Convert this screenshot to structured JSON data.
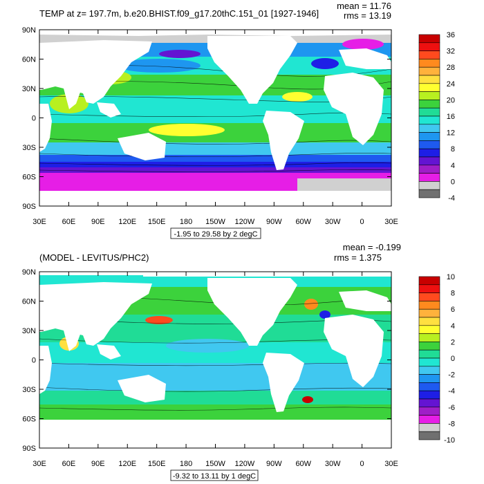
{
  "panels": [
    {
      "id": "top",
      "title": "TEMP at z= 197.7m, b.e20.BHIST.f09_g17.20thC.151_01 [1927-1946]",
      "mean": "mean = 11.76",
      "rms": "rms = 13.19",
      "range_label": "-1.95 to 29.58 by 2 degC",
      "lat_labels": [
        "90N",
        "60N",
        "30N",
        "0",
        "30S",
        "60S",
        "90S"
      ],
      "lon_labels": [
        "30E",
        "60E",
        "90E",
        "120E",
        "150E",
        "180",
        "150W",
        "120W",
        "90W",
        "60W",
        "30W",
        "0",
        "30E"
      ],
      "colorbar": {
        "labels": [
          "36",
          "32",
          "28",
          "24",
          "20",
          "16",
          "12",
          "8",
          "4",
          "0",
          "-4"
        ],
        "colors": [
          "#c80000",
          "#ee1010",
          "#ff4a1e",
          "#ff8a1e",
          "#ffb23c",
          "#ffe040",
          "#ffff30",
          "#b8f020",
          "#3cd23c",
          "#20dc96",
          "#20e6d2",
          "#40c8f0",
          "#1e96f0",
          "#1e5af0",
          "#1e1ee6",
          "#6414d2",
          "#a01ec8",
          "#e61ee6",
          "#d0d0d0",
          "#707070"
        ]
      }
    },
    {
      "id": "bottom",
      "title": "(MODEL - LEVITUS/PHC2)",
      "mean": "mean = -0.199",
      "rms": "rms = 1.375",
      "range_label": "-9.32 to 13.11 by 1 degC",
      "lat_labels": [
        "90N",
        "60N",
        "30N",
        "0",
        "30S",
        "60S",
        "90S"
      ],
      "lon_labels": [
        "30E",
        "60E",
        "90E",
        "120E",
        "150E",
        "180",
        "150W",
        "120W",
        "90W",
        "60W",
        "30W",
        "0",
        "30E"
      ],
      "colorbar": {
        "labels": [
          "10",
          "8",
          "6",
          "4",
          "2",
          "0",
          "-2",
          "-4",
          "-6",
          "-8",
          "-10"
        ],
        "colors": [
          "#c80000",
          "#ee1010",
          "#ff4a1e",
          "#ff8a1e",
          "#ffb23c",
          "#ffe040",
          "#ffff30",
          "#b8f020",
          "#3cd23c",
          "#20dc96",
          "#20e6d2",
          "#40c8f0",
          "#1e96f0",
          "#1e5af0",
          "#1e1ee6",
          "#6414d2",
          "#a01ec8",
          "#e61ee6",
          "#d0d0d0",
          "#707070"
        ]
      }
    }
  ]
}
